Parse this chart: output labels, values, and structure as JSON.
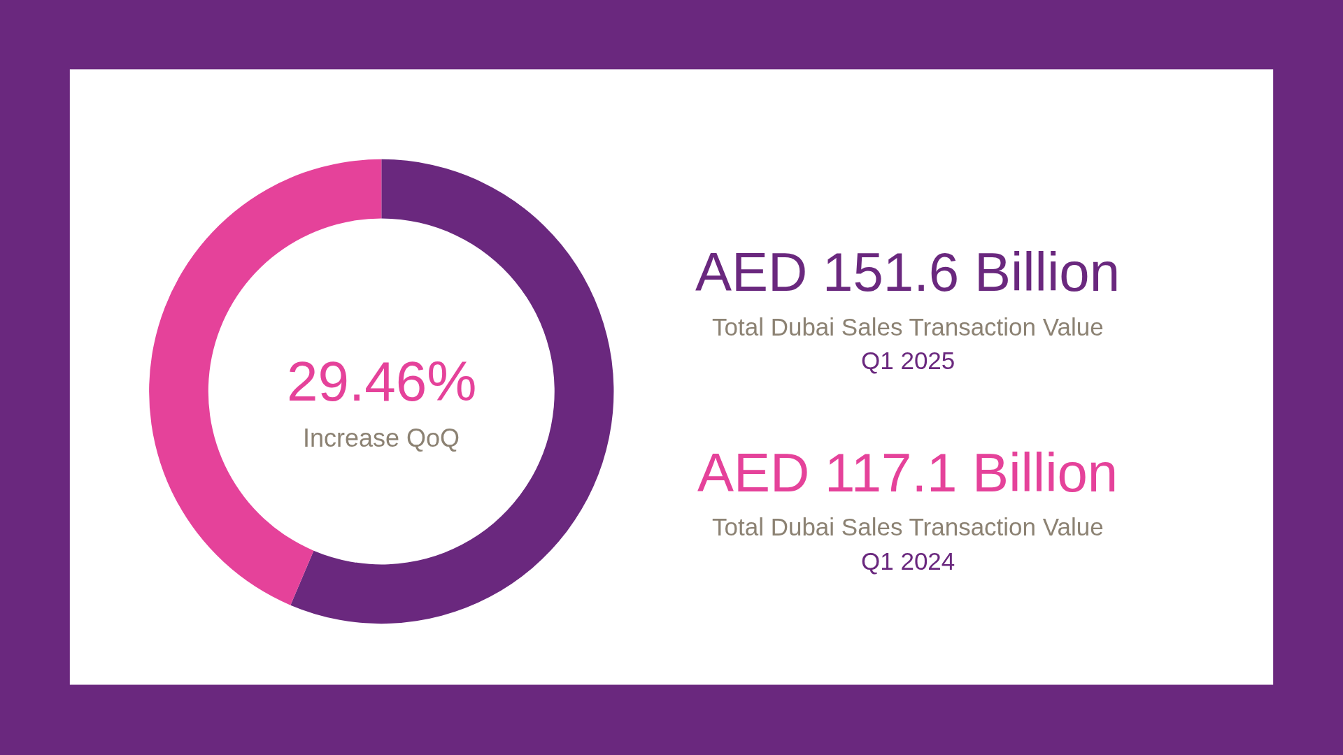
{
  "chart_data": {
    "type": "donut",
    "categories": [
      null,
      null
    ],
    "values": [
      56.4,
      43.6
    ],
    "colors": [
      "#6a287e",
      "#e5429a"
    ],
    "annotations": [
      "AED 151.6 Billion",
      "Total Dubai Sales Transaction Value",
      "Q1 2025",
      "AED 117.1 Billion",
      "Total Dubai Sales Transaction Value",
      "Q1 2024",
      "29.46%",
      "Increase QoQ"
    ],
    "legend": false
  }
}
